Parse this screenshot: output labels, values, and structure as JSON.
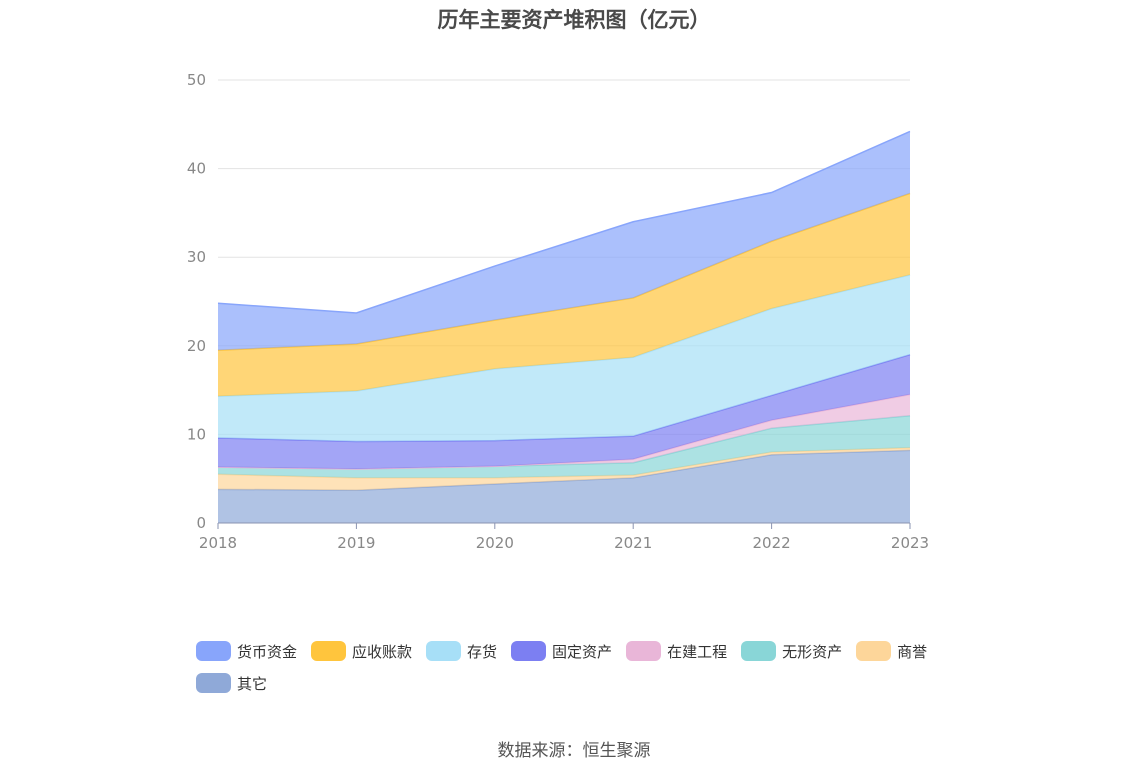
{
  "title": "历年主要资产堆积图（亿元）",
  "source": "数据来源：恒生聚源",
  "chart_data": {
    "type": "area",
    "stacked": true,
    "title": "历年主要资产堆积图（亿元）",
    "xlabel": "",
    "ylabel": "",
    "categories": [
      "2018",
      "2019",
      "2020",
      "2021",
      "2022",
      "2023"
    ],
    "ylim": [
      0,
      50
    ],
    "yticks": [
      0,
      10,
      20,
      30,
      40,
      50
    ],
    "grid": true,
    "legend_position": "bottom",
    "series": [
      {
        "name": "其它",
        "color": "#8fa9d8",
        "values": [
          3.8,
          3.7,
          4.4,
          5.1,
          7.7,
          8.2
        ]
      },
      {
        "name": "商誉",
        "color": "#fdd69a",
        "values": [
          1.7,
          1.4,
          0.7,
          0.3,
          0.3,
          0.3
        ]
      },
      {
        "name": "无形资产",
        "color": "#89d6d7",
        "values": [
          0.8,
          1.0,
          1.3,
          1.4,
          2.7,
          3.6
        ]
      },
      {
        "name": "在建工程",
        "color": "#e9b6d8",
        "values": [
          0.0,
          0.0,
          0.0,
          0.4,
          0.9,
          2.4
        ]
      },
      {
        "name": "固定资产",
        "color": "#7c7ff2",
        "values": [
          3.3,
          3.1,
          2.9,
          2.6,
          2.8,
          4.5
        ]
      },
      {
        "name": "存货",
        "color": "#a7dff7",
        "values": [
          4.7,
          5.7,
          8.1,
          8.9,
          9.8,
          9.0
        ]
      },
      {
        "name": "应收账款",
        "color": "#ffc53d",
        "values": [
          5.2,
          5.3,
          5.5,
          6.7,
          7.6,
          9.2
        ]
      },
      {
        "name": "货币资金",
        "color": "#88a5fb",
        "values": [
          5.3,
          3.5,
          6.1,
          8.6,
          5.5,
          7.0
        ]
      }
    ]
  },
  "legend": {
    "rows": [
      [
        {
          "name": "货币资金",
          "color": "#88a5fb"
        },
        {
          "name": "应收账款",
          "color": "#ffc53d"
        },
        {
          "name": "存货",
          "color": "#a7dff7"
        },
        {
          "name": "固定资产",
          "color": "#7c7ff2"
        },
        {
          "name": "在建工程",
          "color": "#e9b6d8"
        },
        {
          "name": "无形资产",
          "color": "#89d6d7"
        },
        {
          "name": "商誉",
          "color": "#fdd69a"
        }
      ],
      [
        {
          "name": "其它",
          "color": "#8fa9d8"
        }
      ]
    ]
  }
}
